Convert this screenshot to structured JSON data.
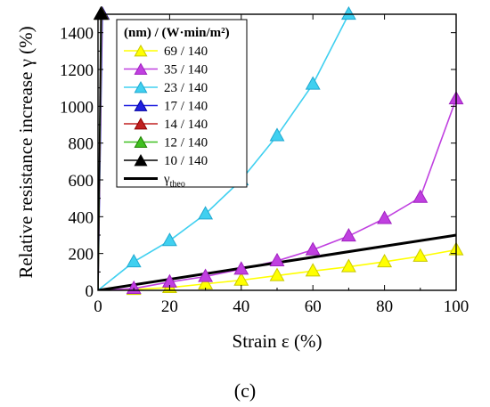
{
  "chart_data": {
    "type": "line",
    "xlabel": "Strain ε (%)",
    "ylabel": "Relative resistance increase γ (%)",
    "xlim": [
      0,
      100
    ],
    "ylim": [
      0,
      1500
    ],
    "xticks": [
      "0",
      "20",
      "40",
      "60",
      "80",
      "100"
    ],
    "yticks": [
      "0",
      "200",
      "400",
      "600",
      "800",
      "1000",
      "1200",
      "1400"
    ],
    "xtick_values": [
      0,
      20,
      40,
      60,
      80,
      100
    ],
    "ytick_values": [
      0,
      200,
      400,
      600,
      800,
      1000,
      1200,
      1400
    ],
    "grid": false,
    "legend_placement": "top-center",
    "legend_title": "(nm) / (W·min/m²)",
    "panel_label": "(c)",
    "series": [
      {
        "name": "69 / 140",
        "color": "#ffff00",
        "edge": "#c8c800",
        "marker": "triangle",
        "x": [
          0,
          10,
          20,
          30,
          40,
          50,
          60,
          70,
          80,
          90,
          100
        ],
        "y": [
          0,
          5,
          15,
          35,
          55,
          80,
          105,
          128,
          155,
          185,
          220
        ]
      },
      {
        "name": "35 / 140",
        "color": "#c040e0",
        "edge": "#a020c0",
        "marker": "triangle",
        "x": [
          0,
          10,
          20,
          30,
          40,
          50,
          60,
          70,
          80,
          90,
          100
        ],
        "y": [
          0,
          10,
          45,
          75,
          115,
          160,
          220,
          295,
          390,
          505,
          1040
        ]
      },
      {
        "name": "23 / 140",
        "color": "#40d0f0",
        "edge": "#20a8d0",
        "marker": "triangle",
        "x": [
          0,
          10,
          20,
          30,
          40,
          50,
          60,
          70
        ],
        "y": [
          0,
          155,
          270,
          415,
          600,
          840,
          1120,
          1500
        ]
      },
      {
        "name": "17 / 140",
        "color": "#2020e0",
        "edge": "#0000a0",
        "marker": "triangle",
        "x": [
          0,
          1.2
        ],
        "y": [
          0,
          1500
        ]
      },
      {
        "name": "14 / 140",
        "color": "#c02020",
        "edge": "#900000",
        "marker": "triangle",
        "x": [
          0,
          1.0
        ],
        "y": [
          0,
          1500
        ]
      },
      {
        "name": "12 / 140",
        "color": "#40c020",
        "edge": "#208000",
        "marker": "triangle",
        "x": [
          0,
          0.9
        ],
        "y": [
          0,
          1500
        ]
      },
      {
        "name": "10 / 140",
        "color": "#000000",
        "edge": "#000000",
        "marker": "triangle",
        "x": [
          0,
          0.8
        ],
        "y": [
          0,
          1500
        ]
      },
      {
        "name": "γtheo",
        "color": "#000000",
        "edge": "#000000",
        "marker": "none",
        "x": [
          0,
          100
        ],
        "y": [
          0,
          300
        ]
      }
    ]
  }
}
